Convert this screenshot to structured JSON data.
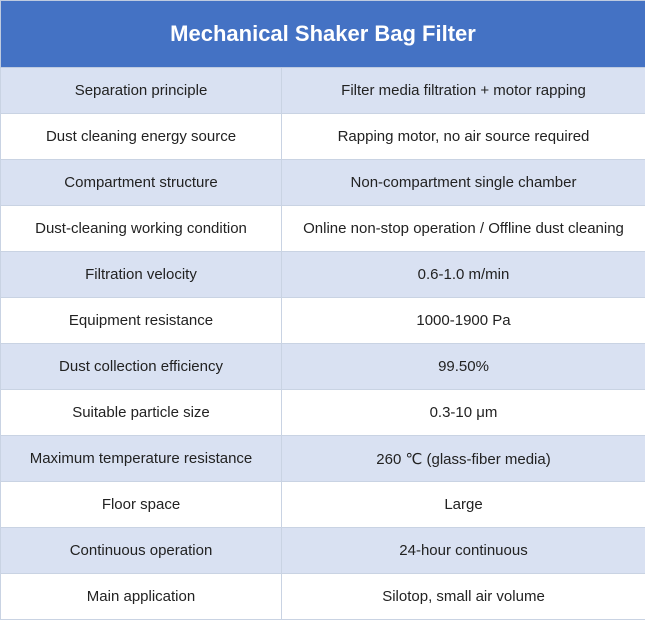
{
  "table": {
    "title": "Mechanical Shaker Bag Filter",
    "rows": [
      {
        "label": "Separation principle",
        "value": "Filter media filtration + motor rapping"
      },
      {
        "label": "Dust cleaning energy source",
        "value": "Rapping motor, no air source required"
      },
      {
        "label": "Compartment structure",
        "value": "Non-compartment single chamber"
      },
      {
        "label": "Dust-cleaning working condition",
        "value": "Online non-stop operation / Offline dust cleaning"
      },
      {
        "label": "Filtration velocity",
        "value": "0.6-1.0 m/min"
      },
      {
        "label": "Equipment resistance",
        "value": "1000-1900 Pa"
      },
      {
        "label": "Dust collection efficiency",
        "value": "99.50%"
      },
      {
        "label": "Suitable particle size",
        "value": "0.3-10 μm"
      },
      {
        "label": "Maximum temperature resistance",
        "value": "260 ℃ (glass-fiber media)"
      },
      {
        "label": "Floor space",
        "value": "Large"
      },
      {
        "label": "Continuous operation",
        "value": "24-hour continuous"
      },
      {
        "label": "Main application",
        "value": "Silotop, small air volume"
      }
    ]
  },
  "colors": {
    "header_bg": "#4472c4",
    "header_text": "#ffffff",
    "band_row_bg": "#d9e1f2",
    "plain_row_bg": "#ffffff"
  }
}
